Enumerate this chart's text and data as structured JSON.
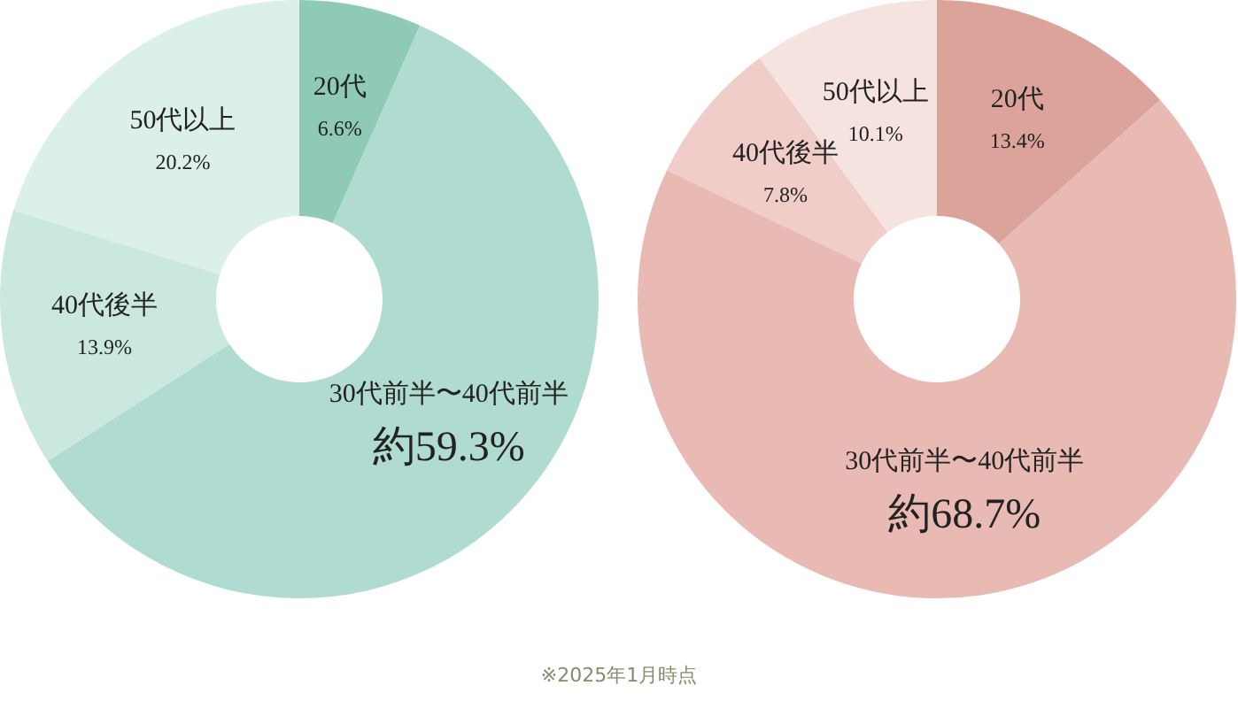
{
  "chart_data": [
    {
      "type": "donut",
      "categories": [
        "20代",
        "30代前半〜40代前半",
        "40代後半",
        "50代以上"
      ],
      "values": [
        6.6,
        59.3,
        13.9,
        20.2
      ],
      "colors": [
        "#8ecab5",
        "#b0dbd0",
        "#cbe8e0",
        "#daf0e9"
      ],
      "value_labels": [
        "6.6%",
        "約59.3%",
        "13.9%",
        "20.2%"
      ]
    },
    {
      "type": "donut",
      "categories": [
        "20代",
        "30代前半〜40代前半",
        "40代後半",
        "50代以上"
      ],
      "values": [
        13.4,
        68.7,
        7.8,
        10.1
      ],
      "colors": [
        "#dba39a",
        "#e8bab3",
        "#f0cdc8",
        "#f5e3e0"
      ],
      "value_labels": [
        "13.4%",
        "約68.7%",
        "7.8%",
        "10.1%"
      ],
      "annotations": [
        "※2025年1月時点"
      ]
    }
  ]
}
